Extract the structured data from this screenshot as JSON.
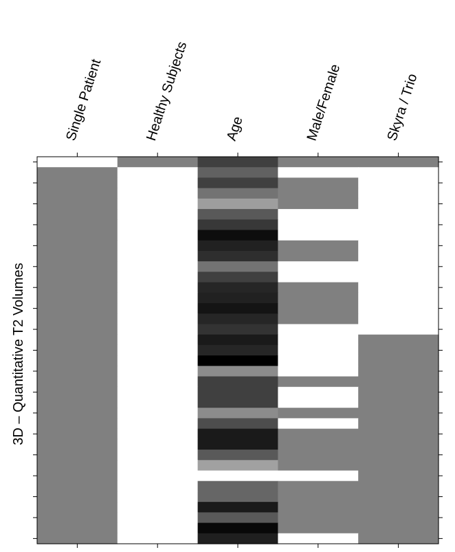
{
  "chart_data": {
    "type": "heatmap",
    "title": "",
    "ylabel": "3D – Quantitative T2 Volumes",
    "columns": [
      "Single Patient",
      "Healthy Subjects",
      "Age",
      "Male/Female",
      "Skyra / Trio"
    ],
    "grid": false,
    "colorscale": "grayscale (value 0 = black, 1 = white)",
    "n_rows": 37,
    "values": [
      [
        1,
        0.5,
        0.25,
        0.5,
        0.5
      ],
      [
        0.5,
        1,
        0.38,
        1,
        1
      ],
      [
        0.5,
        1,
        0.25,
        0.5,
        1
      ],
      [
        0.5,
        1,
        0.45,
        0.5,
        1
      ],
      [
        0.5,
        1,
        0.62,
        0.5,
        1
      ],
      [
        0.5,
        1,
        0.35,
        1,
        1
      ],
      [
        0.5,
        1,
        0.22,
        1,
        1
      ],
      [
        0.5,
        1,
        0.05,
        1,
        1
      ],
      [
        0.5,
        1,
        0.13,
        0.5,
        1
      ],
      [
        0.5,
        1,
        0.18,
        0.5,
        1
      ],
      [
        0.5,
        1,
        0.45,
        1,
        1
      ],
      [
        0.5,
        1,
        0.25,
        1,
        1
      ],
      [
        0.5,
        1,
        0.15,
        0.5,
        1
      ],
      [
        0.5,
        1,
        0.13,
        0.5,
        1
      ],
      [
        0.5,
        1,
        0.08,
        0.5,
        1
      ],
      [
        0.5,
        1,
        0.15,
        0.5,
        1
      ],
      [
        0.5,
        1,
        0.2,
        1,
        1
      ],
      [
        0.5,
        1,
        0.1,
        1,
        0.5
      ],
      [
        0.5,
        1,
        0.15,
        1,
        0.5
      ],
      [
        0.5,
        1,
        0.0,
        1,
        0.5
      ],
      [
        0.5,
        1,
        0.55,
        1,
        0.5
      ],
      [
        0.5,
        1,
        0.25,
        0.5,
        0.5
      ],
      [
        0.5,
        1,
        0.25,
        1,
        0.5
      ],
      [
        0.5,
        1,
        0.25,
        1,
        0.5
      ],
      [
        0.5,
        1,
        0.55,
        0.5,
        0.5
      ],
      [
        0.5,
        1,
        0.3,
        1,
        0.5
      ],
      [
        0.5,
        1,
        0.1,
        0.5,
        0.5
      ],
      [
        0.5,
        1,
        0.1,
        0.5,
        0.5
      ],
      [
        0.5,
        1,
        0.35,
        0.5,
        0.5
      ],
      [
        0.5,
        1,
        0.63,
        0.5,
        0.5
      ],
      [
        0.5,
        1,
        1,
        1,
        0.5
      ],
      [
        0.5,
        1,
        0.4,
        0.5,
        0.5
      ],
      [
        0.5,
        1,
        0.4,
        0.5,
        0.5
      ],
      [
        0.5,
        1,
        0.1,
        0.5,
        0.5
      ],
      [
        0.5,
        1,
        0.35,
        0.5,
        0.5
      ],
      [
        0.5,
        1,
        0.03,
        0.5,
        0.5
      ],
      [
        0.5,
        1,
        0.12,
        1,
        0.5
      ]
    ]
  }
}
